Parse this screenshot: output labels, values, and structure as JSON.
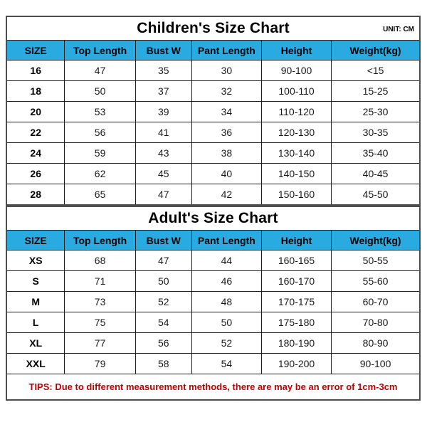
{
  "colors": {
    "header_bg": "#29ABE2",
    "tips_red": "#C00000",
    "outer_border": "#4D4D4D",
    "inner_border": "#1F1F1F"
  },
  "tips_note": "TIPS: Due to different measurement methods, there are may be an error of 1cm-3cm",
  "chart_data": [
    {
      "type": "table",
      "title": "Children's Size Chart",
      "unit_label": "UNIT: CM",
      "columns": [
        "SIZE",
        "Top Length",
        "Bust W",
        "Pant Length",
        "Height",
        "Weight(kg)"
      ],
      "rows": [
        [
          "16",
          "47",
          "35",
          "30",
          "90-100",
          "<15"
        ],
        [
          "18",
          "50",
          "37",
          "32",
          "100-110",
          "15-25"
        ],
        [
          "20",
          "53",
          "39",
          "34",
          "110-120",
          "25-30"
        ],
        [
          "22",
          "56",
          "41",
          "36",
          "120-130",
          "30-35"
        ],
        [
          "24",
          "59",
          "43",
          "38",
          "130-140",
          "35-40"
        ],
        [
          "26",
          "62",
          "45",
          "40",
          "140-150",
          "40-45"
        ],
        [
          "28",
          "65",
          "47",
          "42",
          "150-160",
          "45-50"
        ]
      ]
    },
    {
      "type": "table",
      "title": "Adult's Size Chart",
      "unit_label": "",
      "columns": [
        "SIZE",
        "Top Length",
        "Bust W",
        "Pant Length",
        "Height",
        "Weight(kg)"
      ],
      "rows": [
        [
          "XS",
          "68",
          "47",
          "44",
          "160-165",
          "50-55"
        ],
        [
          "S",
          "71",
          "50",
          "46",
          "160-170",
          "55-60"
        ],
        [
          "M",
          "73",
          "52",
          "48",
          "170-175",
          "60-70"
        ],
        [
          "L",
          "75",
          "54",
          "50",
          "175-180",
          "70-80"
        ],
        [
          "XL",
          "77",
          "56",
          "52",
          "180-190",
          "80-90"
        ],
        [
          "XXL",
          "79",
          "58",
          "54",
          "190-200",
          "90-100"
        ]
      ]
    }
  ]
}
